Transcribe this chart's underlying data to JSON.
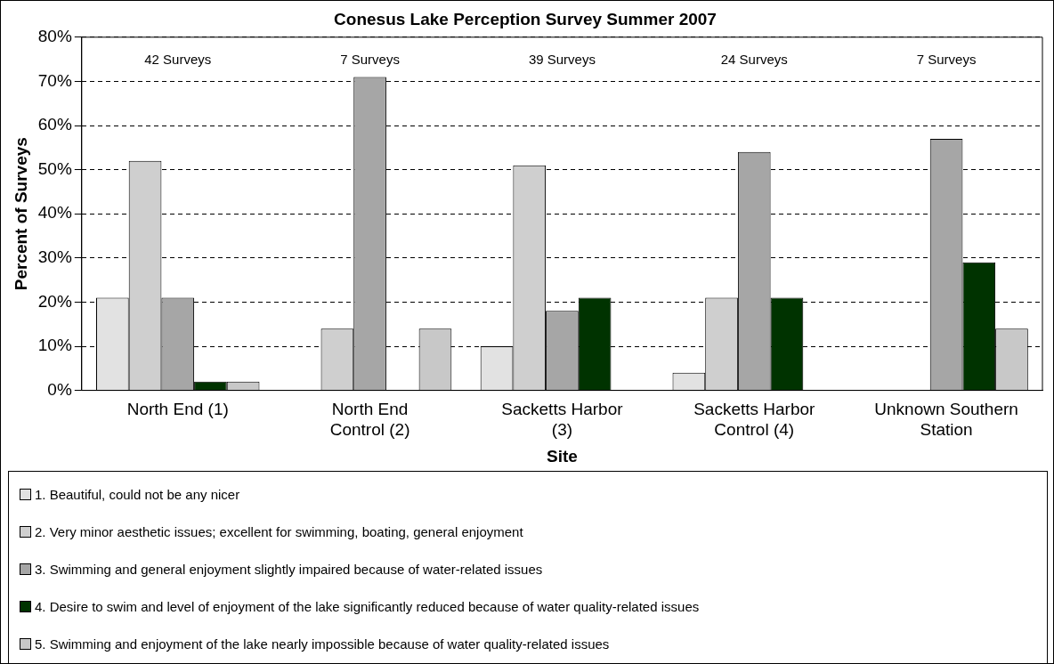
{
  "chart_data": {
    "type": "bar",
    "title": "Conesus Lake Perception Survey Summer 2007",
    "xlabel": "Site",
    "ylabel": "Percent of Surveys",
    "categories": [
      "North End (1)",
      "North End Control (2)",
      "Sacketts Harbor (3)",
      "Sacketts Harbor Control (4)",
      "Unknown Southern Station"
    ],
    "series": [
      {
        "name": "1.  Beautiful, could not be any nicer",
        "color": "#e2e2e2",
        "values": [
          21,
          0,
          10,
          4,
          0
        ]
      },
      {
        "name": "2.  Very minor aesthetic issues; excellent for swimming, boating, general enjoyment",
        "color": "#cfcfcf",
        "values": [
          52,
          14,
          51,
          21,
          0
        ]
      },
      {
        "name": "3.  Swimming and general enjoyment slightly impaired because of water-related issues",
        "color": "#a6a6a6",
        "values": [
          21,
          71,
          18,
          54,
          57
        ]
      },
      {
        "name": "4.  Desire to swim and level of enjoyment of the lake significantly reduced because of water quality-related issues",
        "color": "#003300",
        "values": [
          2,
          0,
          21,
          21,
          29
        ]
      },
      {
        "name": "5.  Swimming and enjoyment of the lake nearly impossible because of water quality-related issues",
        "color": "#c8c8c8",
        "values": [
          2,
          14,
          0,
          0,
          14
        ]
      }
    ],
    "annotations": [
      "42 Surveys",
      "7 Surveys",
      "39 Surveys",
      "24 Surveys",
      "7 Surveys"
    ],
    "ylim": [
      0,
      80
    ],
    "yticks": [
      {
        "value": 0,
        "label": "0%"
      },
      {
        "value": 10,
        "label": "10%"
      },
      {
        "value": 20,
        "label": "20%"
      },
      {
        "value": 30,
        "label": "30%"
      },
      {
        "value": 40,
        "label": "40%"
      },
      {
        "value": 50,
        "label": "50%"
      },
      {
        "value": 60,
        "label": "60%"
      },
      {
        "value": 70,
        "label": "70%"
      },
      {
        "value": 80,
        "label": "80%"
      }
    ],
    "grid": "y",
    "legend": "bottom"
  }
}
